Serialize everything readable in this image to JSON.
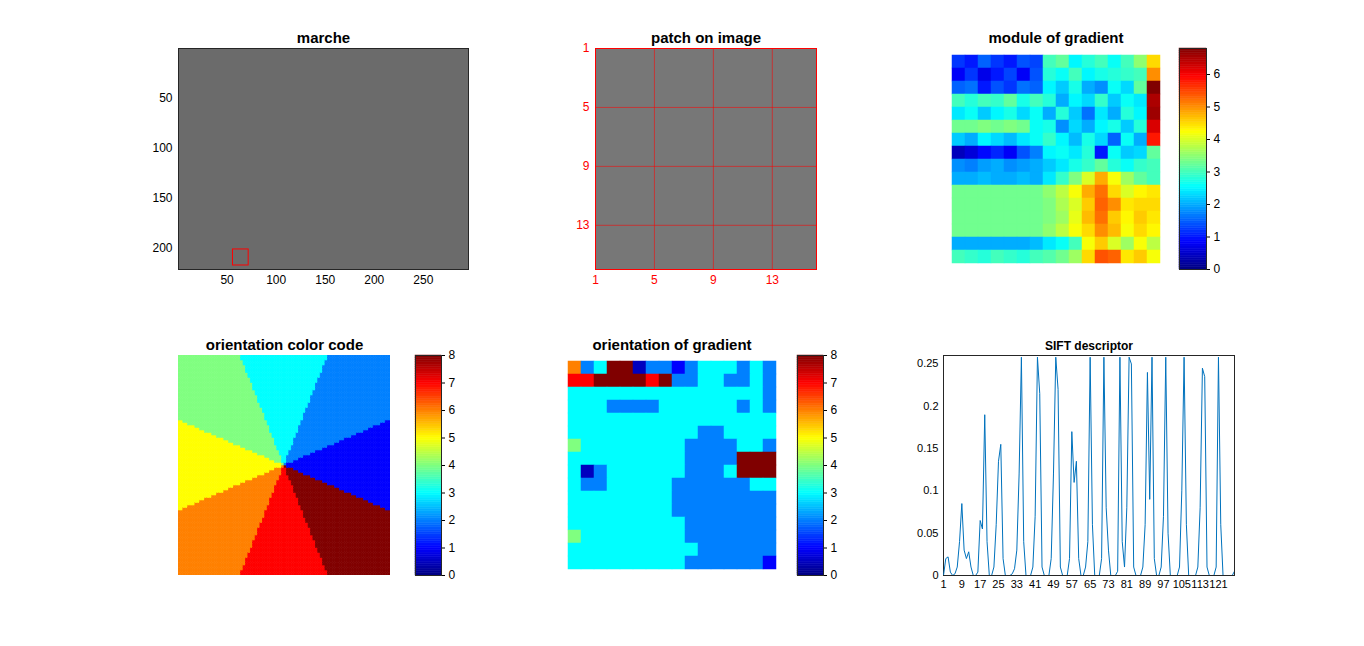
{
  "chart_data": [
    {
      "type": "image",
      "title": "marche",
      "xlim": [
        0.5,
        296
      ],
      "ylim": [
        0.5,
        221
      ],
      "xticks": [
        50,
        100,
        150,
        200,
        250
      ],
      "yticks": [
        50,
        100,
        150,
        200
      ],
      "grid": false,
      "color": "#6b6b6b",
      "patch_box": {
        "x": [
          56,
          72
        ],
        "y": [
          201,
          217
        ],
        "color": "red"
      }
    },
    {
      "type": "image",
      "title": "patch on image",
      "xlim": [
        1,
        16
      ],
      "ylim": [
        1,
        16
      ],
      "xticks": [
        1,
        5,
        9,
        13
      ],
      "yticks": [
        1,
        5,
        9,
        13
      ],
      "grid": true,
      "color": "#777777"
    },
    {
      "type": "heatmap",
      "title": "module of gradient",
      "tick_labels": false,
      "cells": [
        [
          1.2,
          1.0,
          1.5,
          1.2,
          1.0,
          1.4,
          1.3,
          3.0,
          3.2,
          2.5,
          2.8,
          3.0,
          2.6,
          3.0,
          3.5,
          4.5
        ],
        [
          0.8,
          1.2,
          0.7,
          1.0,
          1.3,
          0.8,
          1.4,
          2.8,
          2.6,
          3.0,
          2.5,
          2.7,
          2.8,
          2.9,
          3.0,
          5.0
        ],
        [
          1.5,
          1.6,
          1.0,
          1.4,
          1.2,
          1.6,
          1.5,
          2.5,
          2.2,
          2.7,
          2.0,
          1.8,
          2.6,
          2.3,
          3.2,
          6.8
        ],
        [
          3.0,
          2.8,
          3.0,
          2.9,
          3.2,
          2.7,
          3.0,
          2.8,
          2.0,
          2.5,
          2.3,
          2.9,
          2.2,
          2.6,
          2.4,
          6.5
        ],
        [
          2.4,
          2.6,
          2.2,
          2.5,
          2.7,
          2.3,
          2.6,
          2.0,
          2.8,
          2.2,
          1.6,
          2.4,
          2.0,
          2.8,
          2.5,
          6.6
        ],
        [
          3.3,
          3.3,
          3.4,
          3.3,
          3.4,
          3.3,
          2.6,
          2.7,
          1.8,
          2.3,
          2.0,
          2.5,
          2.7,
          2.2,
          2.8,
          6.2
        ],
        [
          2.2,
          2.0,
          2.5,
          2.3,
          2.1,
          2.4,
          2.6,
          2.9,
          2.5,
          2.1,
          2.7,
          2.3,
          1.5,
          2.6,
          2.0,
          5.8
        ],
        [
          0.4,
          0.6,
          0.9,
          1.1,
          0.8,
          1.4,
          1.7,
          2.5,
          2.6,
          2.4,
          2.8,
          1.0,
          2.6,
          2.2,
          2.3,
          3.2
        ],
        [
          1.8,
          1.7,
          1.9,
          2.0,
          1.8,
          1.9,
          2.0,
          2.2,
          2.4,
          2.7,
          2.9,
          3.2,
          2.8,
          2.6,
          2.9,
          3.0
        ],
        [
          2.0,
          2.0,
          2.1,
          2.0,
          2.0,
          2.1,
          2.0,
          2.4,
          2.9,
          3.4,
          4.0,
          4.8,
          4.2,
          3.6,
          3.2,
          3.0
        ],
        [
          3.3,
          3.3,
          3.3,
          3.3,
          3.3,
          3.3,
          3.3,
          3.5,
          3.8,
          4.2,
          4.8,
          5.2,
          4.5,
          4.0,
          4.3,
          4.4
        ],
        [
          3.3,
          3.3,
          3.3,
          3.3,
          3.3,
          3.3,
          3.3,
          3.4,
          3.7,
          4.0,
          4.6,
          5.3,
          5.0,
          4.4,
          4.5,
          4.5
        ],
        [
          3.3,
          3.3,
          3.3,
          3.3,
          3.3,
          3.3,
          3.3,
          3.4,
          3.6,
          4.1,
          4.7,
          5.2,
          4.6,
          4.3,
          4.6,
          4.4
        ],
        [
          3.3,
          3.3,
          3.3,
          3.3,
          3.3,
          3.3,
          3.3,
          3.5,
          3.8,
          4.2,
          4.5,
          5.0,
          4.7,
          4.2,
          4.5,
          4.3
        ],
        [
          2.0,
          2.0,
          2.0,
          2.0,
          2.0,
          2.0,
          2.1,
          2.4,
          2.6,
          3.0,
          4.2,
          4.6,
          4.0,
          3.6,
          4.2,
          3.8
        ],
        [
          3.0,
          2.9,
          2.8,
          3.0,
          2.9,
          2.8,
          3.0,
          3.1,
          3.3,
          3.6,
          4.5,
          5.4,
          5.3,
          4.4,
          4.6,
          4.2
        ]
      ],
      "colorbar": {
        "range": [
          0,
          6.8
        ],
        "ticks": [
          0,
          1,
          2,
          3,
          4,
          5,
          6
        ]
      }
    },
    {
      "type": "sector_wheel",
      "title": "orientation color code",
      "tick_labels": false,
      "sectors": [
        {
          "value": 1,
          "angle": 0
        },
        {
          "value": 2,
          "angle": 45
        },
        {
          "value": 3,
          "angle": 90
        },
        {
          "value": 4,
          "angle": 135
        },
        {
          "value": 5,
          "angle": 180
        },
        {
          "value": 6,
          "angle": 225
        },
        {
          "value": 7,
          "angle": 270
        },
        {
          "value": 8,
          "angle": 315
        }
      ],
      "colorbar": {
        "range": [
          0,
          8
        ],
        "ticks": [
          0,
          1,
          2,
          3,
          4,
          5,
          6,
          7,
          8
        ]
      }
    },
    {
      "type": "heatmap",
      "title": "orientation of gradient",
      "tick_labels": false,
      "cells": [
        [
          6,
          2,
          3,
          8,
          8,
          0.5,
          2,
          2,
          1,
          2,
          3,
          3,
          3,
          2,
          3,
          2
        ],
        [
          7,
          7,
          8,
          8,
          8,
          8,
          7,
          8,
          2,
          2,
          3,
          3,
          2,
          2,
          3,
          2
        ],
        [
          3,
          3,
          3,
          3,
          3,
          3,
          3,
          3,
          3,
          3,
          3,
          3,
          3,
          3,
          3,
          2
        ],
        [
          3,
          3,
          3,
          2,
          2,
          2,
          2,
          3,
          3,
          3,
          3,
          3,
          3,
          2,
          3,
          2
        ],
        [
          3,
          3,
          3,
          3,
          3,
          3,
          3,
          3,
          3,
          3,
          3,
          3,
          3,
          3,
          3,
          3
        ],
        [
          3,
          3,
          3,
          3,
          3,
          3,
          3,
          3,
          3,
          3,
          2,
          2,
          3,
          3,
          3,
          3
        ],
        [
          4,
          3,
          3,
          3,
          3,
          3,
          3,
          3,
          3,
          2,
          2,
          2,
          2,
          3,
          3,
          2
        ],
        [
          3,
          3,
          3,
          3,
          3,
          3,
          3,
          3,
          3,
          2,
          2,
          2,
          2,
          8,
          8,
          8
        ],
        [
          3,
          0.5,
          2,
          3,
          3,
          3,
          3,
          3,
          3,
          2,
          2,
          2,
          3,
          8,
          8,
          8
        ],
        [
          3,
          2,
          2,
          3,
          3,
          3,
          3,
          3,
          2,
          2,
          2,
          2,
          2,
          2,
          3,
          3
        ],
        [
          3,
          3,
          3,
          3,
          3,
          3,
          3,
          3,
          2,
          2,
          2,
          2,
          2,
          2,
          2,
          2
        ],
        [
          3,
          3,
          3,
          3,
          3,
          3,
          3,
          3,
          2,
          2,
          2,
          2,
          2,
          2,
          2,
          2
        ],
        [
          3,
          3,
          3,
          3,
          3,
          3,
          3,
          3,
          3,
          2,
          2,
          2,
          2,
          2,
          2,
          2
        ],
        [
          4,
          3,
          3,
          3,
          3,
          3,
          3,
          3,
          3,
          2,
          2,
          2,
          2,
          2,
          2,
          2
        ],
        [
          3,
          3,
          3,
          3,
          3,
          3,
          3,
          3,
          3,
          3,
          2,
          2,
          2,
          2,
          2,
          2
        ],
        [
          3,
          3,
          3,
          3,
          3,
          3,
          3,
          3,
          3,
          2,
          2,
          2,
          2,
          2,
          2,
          1
        ]
      ],
      "colorbar": {
        "range": [
          0,
          8
        ],
        "ticks": [
          0,
          1,
          2,
          3,
          4,
          5,
          6,
          7,
          8
        ]
      }
    },
    {
      "type": "line",
      "title": "SIFT descriptor",
      "color": "#0072bd",
      "x": [
        1,
        2,
        3,
        4,
        5,
        6,
        7,
        8,
        9,
        10,
        11,
        12,
        13,
        14,
        15,
        16,
        17,
        18,
        19,
        20,
        21,
        22,
        23,
        24,
        25,
        26,
        27,
        28,
        29,
        30,
        31,
        32,
        33,
        34,
        35,
        36,
        37,
        38,
        39,
        40,
        41,
        42,
        43,
        44,
        45,
        46,
        47,
        48,
        49,
        50,
        51,
        52,
        53,
        54,
        55,
        56,
        57,
        58,
        59,
        60,
        61,
        62,
        63,
        64,
        65,
        66,
        67,
        68,
        69,
        70,
        71,
        72,
        73,
        74,
        75,
        76,
        77,
        78,
        79,
        80,
        81,
        82,
        83,
        84,
        85,
        86,
        87,
        88,
        89,
        90,
        91,
        92,
        93,
        94,
        95,
        96,
        97,
        98,
        99,
        100,
        101,
        102,
        103,
        104,
        105,
        106,
        107,
        108,
        109,
        110,
        111,
        112,
        113,
        114,
        115,
        116,
        117,
        118,
        119,
        120,
        121,
        122,
        123,
        124,
        125,
        126,
        127,
        128
      ],
      "values": [
        0,
        0.02,
        0.022,
        0.004,
        0,
        0.002,
        0.01,
        0.04,
        0.085,
        0.03,
        0.02,
        0.028,
        0.01,
        0,
        0,
        0.004,
        0.065,
        0.055,
        0.19,
        0.04,
        0,
        0,
        0.01,
        0.06,
        0.135,
        0.155,
        0.02,
        0,
        0,
        0,
        0.002,
        0.008,
        0.03,
        0.12,
        0.258,
        0.04,
        0,
        0,
        0,
        0.01,
        0.07,
        0.258,
        0.215,
        0.01,
        0,
        0,
        0,
        0.02,
        0.12,
        0.258,
        0.22,
        0.01,
        0,
        0,
        0,
        0.02,
        0.17,
        0.11,
        0.135,
        0.02,
        0,
        0,
        0.01,
        0.04,
        0.258,
        0.06,
        0,
        0,
        0,
        0.02,
        0.258,
        0.08,
        0.03,
        0,
        0,
        0,
        0.005,
        0.258,
        0.04,
        0.01,
        0.08,
        0.258,
        0.25,
        0.01,
        0,
        0,
        0,
        0.01,
        0.06,
        0.24,
        0.09,
        0.258,
        0.02,
        0,
        0,
        0.01,
        0.07,
        0.258,
        0.05,
        0,
        0,
        0,
        0,
        0.01,
        0.1,
        0.258,
        0.06,
        0,
        0,
        0,
        0,
        0.01,
        0.08,
        0.245,
        0.235,
        0.01,
        0,
        0,
        0,
        0.01,
        0.258,
        0.06,
        0,
        0,
        0,
        0,
        0,
        0.005
      ],
      "xlim": [
        1,
        128
      ],
      "ylim": [
        0,
        0.26
      ],
      "xticks": [
        1,
        9,
        17,
        25,
        33,
        41,
        49,
        57,
        65,
        73,
        81,
        89,
        97,
        105,
        113,
        121
      ],
      "yticks": [
        0,
        0.05,
        0.1,
        0.15,
        0.2,
        0.25
      ]
    }
  ]
}
